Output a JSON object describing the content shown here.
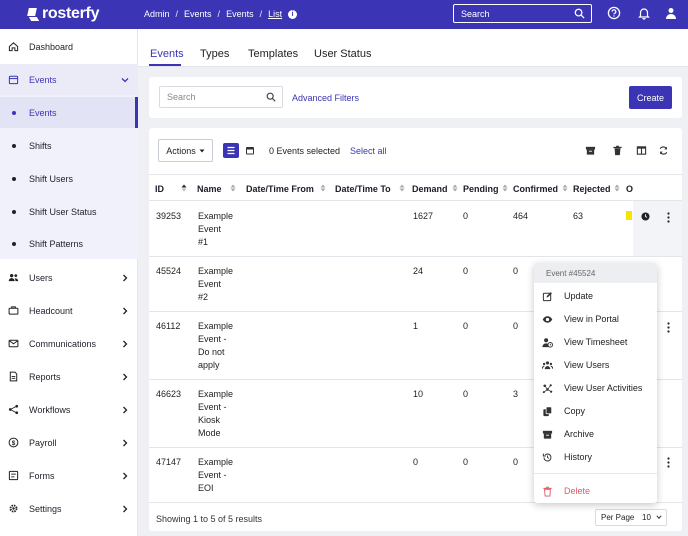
{
  "topbar": {
    "brand": "rosterfy",
    "breadcrumbs": [
      "Admin",
      "/",
      "Events",
      "/",
      "Events",
      "/",
      "List"
    ],
    "search_placeholder": "Search",
    "colors": {
      "primary": "#3b35b5"
    }
  },
  "sidebar": {
    "items": [
      {
        "label": "Dashboard",
        "icon": "home-icon"
      },
      {
        "label": "Events",
        "icon": "calendar-icon",
        "expanded": true
      },
      {
        "label": "Users",
        "icon": "users-icon"
      },
      {
        "label": "Headcount",
        "icon": "briefcase-icon"
      },
      {
        "label": "Communications",
        "icon": "envelope-icon"
      },
      {
        "label": "Reports",
        "icon": "report-icon"
      },
      {
        "label": "Workflows",
        "icon": "workflow-icon"
      },
      {
        "label": "Payroll",
        "icon": "dollar-icon"
      },
      {
        "label": "Forms",
        "icon": "form-icon"
      },
      {
        "label": "Settings",
        "icon": "gear-icon"
      }
    ],
    "events_sub": [
      "Events",
      "Shifts",
      "Shift Users",
      "Shift User Status",
      "Shift Patterns"
    ]
  },
  "tabs": [
    "Events",
    "Types",
    "Templates",
    "User Status"
  ],
  "filter": {
    "search_placeholder": "Search",
    "advanced": "Advanced Filters",
    "create": "Create"
  },
  "toolbar": {
    "actions": "Actions",
    "selected": "0 Events selected",
    "select_all": "Select all"
  },
  "table": {
    "headers": [
      "ID",
      "Name",
      "Date/Time From",
      "Date/Time To",
      "Demand",
      "Pending",
      "Confirmed",
      "Rejected",
      "O"
    ],
    "rows": [
      {
        "id": "39253",
        "name": [
          "Example",
          "Event",
          "#1"
        ],
        "demand": "1627",
        "pending": "0",
        "confirmed": "464",
        "rejected": "63"
      },
      {
        "id": "45524",
        "name": [
          "Example",
          "Event",
          "#2"
        ],
        "demand": "24",
        "pending": "0",
        "confirmed": "0",
        "rejected": ""
      },
      {
        "id": "46112",
        "name": [
          "Example",
          "Event -",
          "Do not",
          "apply"
        ],
        "demand": "1",
        "pending": "0",
        "confirmed": "0",
        "rejected": ""
      },
      {
        "id": "46623",
        "name": [
          "Example",
          "Event -",
          "Kiosk",
          "Mode"
        ],
        "demand": "10",
        "pending": "0",
        "confirmed": "3",
        "rejected": ""
      },
      {
        "id": "47147",
        "name": [
          "Example",
          "Event -",
          "EOI"
        ],
        "demand": "0",
        "pending": "0",
        "confirmed": "0",
        "rejected": ""
      }
    ]
  },
  "footer": {
    "showing": "Showing 1 to 5 of 5 results",
    "per_page_label": "Per Page",
    "per_page_value": "10"
  },
  "context_menu": {
    "title": "Event #45524",
    "items": [
      {
        "label": "Update",
        "icon": "edit-icon"
      },
      {
        "label": "View in Portal",
        "icon": "eye-icon"
      },
      {
        "label": "View Timesheet",
        "icon": "user-clock-icon"
      },
      {
        "label": "View Users",
        "icon": "users-icon"
      },
      {
        "label": "View User Activities",
        "icon": "activity-icon"
      },
      {
        "label": "Copy",
        "icon": "copy-icon"
      },
      {
        "label": "Archive",
        "icon": "archive-icon"
      },
      {
        "label": "History",
        "icon": "history-icon"
      }
    ],
    "delete": "Delete"
  }
}
